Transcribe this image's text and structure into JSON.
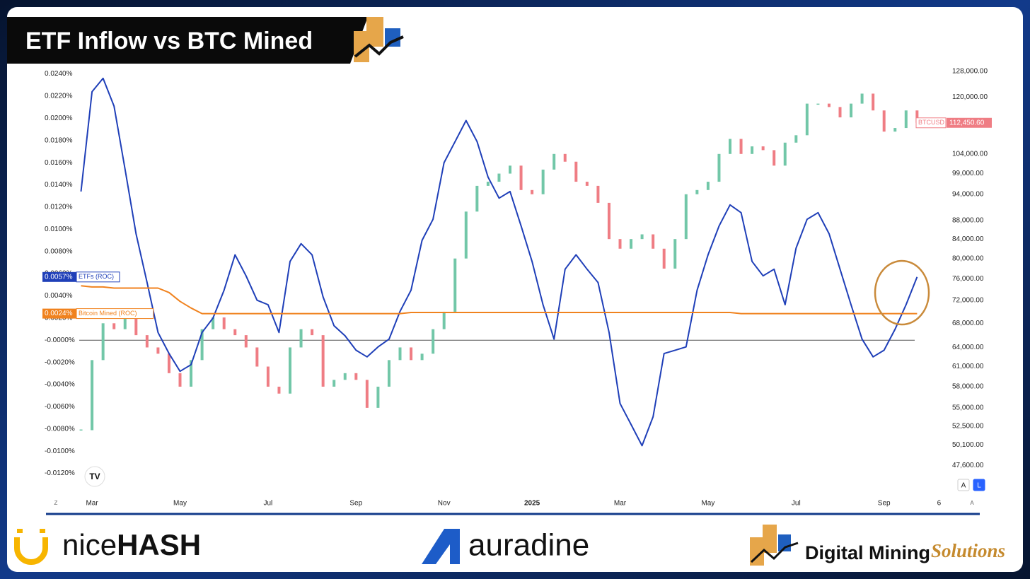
{
  "title": "ETF Inflow vs BTC Mined",
  "chart_data": {
    "type": "line",
    "categories": [
      null,
      null,
      "Mar",
      null,
      null,
      null,
      null,
      null,
      null,
      null,
      "May",
      null,
      null,
      null,
      null,
      null,
      null,
      null,
      "Jul",
      null,
      null,
      null,
      null,
      null,
      null,
      null,
      "Sep",
      null,
      null,
      null,
      null,
      null,
      null,
      null,
      "Nov",
      null,
      null,
      null,
      null,
      null,
      null,
      null,
      "2025",
      null,
      null,
      null,
      null,
      null,
      null,
      null,
      "Mar",
      null,
      null,
      null,
      null,
      null,
      null,
      null,
      "May",
      null,
      null,
      null,
      null,
      null,
      null,
      null,
      "Jul",
      null,
      null,
      null,
      null,
      null,
      null,
      null,
      "Sep",
      null,
      null,
      null,
      null,
      "6"
    ],
    "series": [
      {
        "name": "ETFs (ROC)",
        "color": "#1f3fb8",
        "axis": "y",
        "type": "line",
        "values": [
          null,
          0.0134,
          0.0224,
          0.0236,
          0.0211,
          0.0154,
          0.0096,
          0.0052,
          0.0007,
          -0.0012,
          -0.0028,
          -0.0022,
          0.0007,
          0.002,
          0.0045,
          0.0077,
          0.0058,
          0.0036,
          0.0032,
          0.0007,
          0.0071,
          0.0087,
          0.0077,
          0.0039,
          0.0013,
          0.0004,
          -0.0009,
          -0.0015,
          -0.0006,
          0.0001,
          0.0026,
          0.0045,
          0.009,
          0.0109,
          0.016,
          0.0179,
          0.0198,
          0.0179,
          0.0147,
          0.0128,
          0.0134,
          0.0103,
          0.0071,
          0.0032,
          0.0001,
          0.0064,
          0.0077,
          0.0064,
          0.0052,
          0.0007,
          -0.0057,
          -0.0076,
          -0.0095,
          -0.0069,
          -0.0012,
          -0.0009,
          -0.0006,
          0.0045,
          0.0077,
          0.0103,
          0.0122,
          0.0115,
          0.0071,
          0.0058,
          0.0064,
          0.0032,
          0.0083,
          0.0109,
          0.0115,
          0.0096,
          0.0064,
          0.0032,
          0.0001,
          -0.0015,
          -0.0009,
          0.001,
          0.0032,
          0.0057,
          null,
          null
        ],
        "value_labels": [
          null,
          null,
          null,
          null,
          null,
          null,
          null,
          null,
          null,
          null,
          null,
          null,
          null,
          null,
          null,
          null,
          null,
          null,
          null,
          null,
          null,
          null,
          null,
          null,
          null,
          null,
          null,
          null,
          null,
          null,
          null,
          null,
          null,
          null,
          null,
          null,
          null,
          null,
          null,
          null,
          null,
          null,
          null,
          null,
          null,
          null,
          null,
          null,
          null,
          null,
          null,
          null,
          null,
          null,
          null,
          null,
          null,
          null,
          null,
          null,
          null,
          null,
          null,
          null,
          null,
          null,
          null,
          null,
          null,
          null,
          null,
          null,
          null,
          null,
          null,
          null,
          null,
          "0.0057%",
          null,
          null
        ]
      },
      {
        "name": "Bitcoin Mined (ROC)",
        "color": "#f0821e",
        "axis": "y",
        "type": "line",
        "values": [
          null,
          0.0049,
          0.0048,
          0.0048,
          0.0047,
          0.0047,
          0.0047,
          0.0047,
          0.0047,
          0.0043,
          0.0035,
          0.0029,
          0.0024,
          0.0024,
          0.0024,
          0.0024,
          0.0024,
          0.0024,
          0.0024,
          0.0024,
          0.0024,
          0.0024,
          0.0024,
          0.0024,
          0.0024,
          0.0024,
          0.0024,
          0.0024,
          0.0024,
          0.0024,
          0.0024,
          0.0025,
          0.0025,
          0.0025,
          0.0025,
          0.0025,
          0.0025,
          0.0025,
          0.0025,
          0.0025,
          0.0025,
          0.0025,
          0.0025,
          0.0025,
          0.0025,
          0.0025,
          0.0025,
          0.0025,
          0.0025,
          0.0025,
          0.0025,
          0.0025,
          0.0025,
          0.0025,
          0.0025,
          0.0025,
          0.0025,
          0.0025,
          0.0025,
          0.0025,
          0.0025,
          0.0024,
          0.0024,
          0.0024,
          0.0024,
          0.0024,
          0.0024,
          0.0024,
          0.0024,
          0.0024,
          0.0024,
          0.0024,
          0.0024,
          0.0024,
          0.0024,
          0.0024,
          0.0024,
          0.0024,
          null,
          null
        ],
        "value_labels": [
          null,
          null,
          null,
          null,
          null,
          null,
          null,
          null,
          null,
          null,
          null,
          null,
          null,
          null,
          null,
          null,
          null,
          null,
          null,
          null,
          null,
          null,
          null,
          null,
          null,
          null,
          null,
          null,
          null,
          null,
          null,
          null,
          null,
          null,
          null,
          null,
          null,
          null,
          null,
          null,
          null,
          null,
          null,
          null,
          null,
          null,
          null,
          null,
          null,
          null,
          null,
          null,
          null,
          null,
          null,
          null,
          null,
          null,
          null,
          null,
          null,
          null,
          null,
          null,
          null,
          null,
          null,
          null,
          null,
          null,
          null,
          null,
          null,
          null,
          null,
          null,
          null,
          "0.0024%",
          null,
          null
        ]
      },
      {
        "name": "BTCUSD",
        "color": "#72c7a8",
        "down_color": "#ef7d84",
        "axis": "y2",
        "type": "candlestick",
        "values": [
          null,
          52000,
          62000,
          68000,
          67000,
          70000,
          66000,
          64000,
          63000,
          60000,
          58000,
          62000,
          67000,
          69000,
          67000,
          66000,
          64000,
          61000,
          58000,
          57000,
          64000,
          67000,
          66000,
          58000,
          59000,
          60000,
          59000,
          55000,
          58000,
          62000,
          64000,
          62000,
          63000,
          67000,
          70000,
          80000,
          90000,
          96000,
          97000,
          99000,
          101000,
          95000,
          94000,
          100000,
          104000,
          102000,
          97000,
          96000,
          92000,
          84000,
          82000,
          84000,
          85000,
          82000,
          78000,
          84000,
          94000,
          95000,
          97000,
          104000,
          108000,
          104000,
          106000,
          105000,
          101000,
          107000,
          109000,
          118000,
          118000,
          117000,
          114000,
          118000,
          121000,
          116000,
          110000,
          111000,
          116000,
          112450.6,
          null,
          null
        ],
        "value_labels": [
          null,
          null,
          null,
          null,
          null,
          null,
          null,
          null,
          null,
          null,
          null,
          null,
          null,
          null,
          null,
          null,
          null,
          null,
          null,
          null,
          null,
          null,
          null,
          null,
          null,
          null,
          null,
          null,
          null,
          null,
          null,
          null,
          null,
          null,
          null,
          null,
          null,
          null,
          null,
          null,
          null,
          null,
          null,
          null,
          null,
          null,
          null,
          null,
          null,
          null,
          null,
          null,
          null,
          null,
          null,
          null,
          null,
          null,
          null,
          null,
          null,
          null,
          null,
          null,
          null,
          null,
          null,
          null,
          null,
          null,
          null,
          null,
          null,
          null,
          null,
          null,
          null,
          "112,450.60",
          null,
          null
        ]
      }
    ],
    "ylim": [
      -0.0133,
      0.0248
    ],
    "yticks": [
      {
        "value": 0.024,
        "label": "0.0240%"
      },
      {
        "value": 0.022,
        "label": "0.0220%"
      },
      {
        "value": 0.02,
        "label": "0.0200%"
      },
      {
        "value": 0.018,
        "label": "0.0180%"
      },
      {
        "value": 0.016,
        "label": "0.0160%"
      },
      {
        "value": 0.014,
        "label": "0.0140%"
      },
      {
        "value": 0.012,
        "label": "0.0120%"
      },
      {
        "value": 0.01,
        "label": "0.0100%"
      },
      {
        "value": 0.008,
        "label": "0.0080%"
      },
      {
        "value": 0.006,
        "label": "0.0060%"
      },
      {
        "value": 0.004,
        "label": "0.0040%"
      },
      {
        "value": 0.002,
        "label": "0.0020%"
      },
      {
        "value": 0,
        "label": "-0.0000%"
      },
      {
        "value": -0.002,
        "label": "-0.0020%"
      },
      {
        "value": -0.004,
        "label": "-0.0040%"
      },
      {
        "value": -0.006,
        "label": "-0.0060%"
      },
      {
        "value": -0.008,
        "label": "-0.0080%"
      },
      {
        "value": -0.01,
        "label": "-0.0100%"
      },
      {
        "value": -0.012,
        "label": "-0.0120%"
      }
    ],
    "y2lim": [
      45000,
      130000
    ],
    "y2_log": true,
    "y2ticks": [
      {
        "value": 128000,
        "label": "128,000.00"
      },
      {
        "value": 120000,
        "label": "120,000.00"
      },
      {
        "value": 104000,
        "label": "104,000.00"
      },
      {
        "value": 99000,
        "label": "99,000.00"
      },
      {
        "value": 94000,
        "label": "94,000.00"
      },
      {
        "value": 88000,
        "label": "88,000.00"
      },
      {
        "value": 84000,
        "label": "84,000.00"
      },
      {
        "value": 80000,
        "label": "80,000.00"
      },
      {
        "value": 76000,
        "label": "76,000.00"
      },
      {
        "value": 72000,
        "label": "72,000.00"
      },
      {
        "value": 68000,
        "label": "68,000.00"
      },
      {
        "value": 64000,
        "label": "64,000.00"
      },
      {
        "value": 61000,
        "label": "61,000.00"
      },
      {
        "value": 58000,
        "label": "58,000.00"
      },
      {
        "value": 55000,
        "label": "55,000.00"
      },
      {
        "value": 52500,
        "label": "52,500.00"
      },
      {
        "value": 50100,
        "label": "50,100.00"
      },
      {
        "value": 47600,
        "label": "47,600.00"
      }
    ],
    "grid": false
  },
  "ui": {
    "corner_left": "Z",
    "corner_right": "A",
    "buttons": [
      "A",
      "L"
    ]
  },
  "footer": {
    "nicehash": [
      "nice",
      "HASH"
    ],
    "auradine": "auradine",
    "dms": [
      "Digital Mining",
      "Solutions"
    ]
  }
}
